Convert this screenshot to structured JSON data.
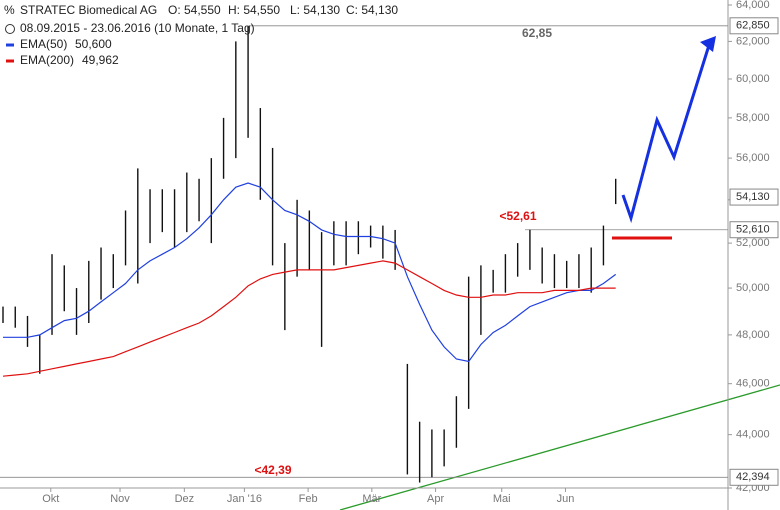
{
  "chart_data": {
    "type": "ohlc",
    "title": "STRATEC Biomedical AG",
    "quote": [
      "O: 54,550",
      "H: 54,550",
      "L: 54,130",
      "C: 54,130"
    ],
    "subtitle": "08.09.2015 - 23.06.2016 (10 Monate, 1 Tag)",
    "bar_color": "#111111",
    "x": [
      0,
      1,
      2,
      3,
      4,
      5,
      6,
      7,
      8,
      9,
      10,
      11,
      12,
      13,
      14,
      15,
      16,
      17,
      18,
      19,
      20,
      21,
      22,
      23,
      24,
      25,
      26,
      27,
      28,
      29,
      30,
      31,
      32,
      33,
      34,
      35,
      36,
      37,
      38,
      39,
      40,
      41,
      42,
      43,
      44,
      45,
      46,
      47,
      48,
      49,
      50
    ],
    "high": [
      49200,
      49200,
      48800,
      48000,
      51500,
      51000,
      50000,
      51200,
      51800,
      51500,
      53500,
      55500,
      54500,
      54500,
      54500,
      55300,
      55000,
      56000,
      58000,
      62000,
      62850,
      58500,
      56500,
      52000,
      54000,
      53500,
      52500,
      53000,
      53000,
      53000,
      52800,
      52800,
      52600,
      46800,
      44500,
      44200,
      44200,
      45500,
      50500,
      51000,
      50800,
      51500,
      52000,
      52610,
      51800,
      51500,
      51200,
      51500,
      51800,
      52800,
      55000
    ],
    "low": [
      48500,
      48300,
      47500,
      46400,
      48000,
      49000,
      48000,
      48500,
      49500,
      50000,
      51000,
      50200,
      52000,
      52500,
      51800,
      52500,
      53000,
      52000,
      55000,
      56000,
      57000,
      54000,
      51000,
      48200,
      50500,
      50800,
      47500,
      51000,
      51000,
      51500,
      51800,
      51300,
      50800,
      42500,
      42200,
      42394,
      42800,
      43500,
      45000,
      48000,
      49800,
      49800,
      50500,
      50800,
      50200,
      50000,
      50000,
      50000,
      49800,
      51000,
      53800
    ],
    "series": [
      {
        "name": "EMA(50)",
        "last": "50,600",
        "color": "#2040e0",
        "values": [
          47900,
          47900,
          47900,
          48000,
          48300,
          48600,
          48700,
          49000,
          49400,
          49800,
          50200,
          50800,
          51200,
          51500,
          51800,
          52200,
          52700,
          53300,
          54000,
          54600,
          54800,
          54600,
          54000,
          53500,
          53300,
          53000,
          52600,
          52400,
          52300,
          52300,
          52300,
          52200,
          52000,
          50500,
          49300,
          48200,
          47500,
          47000,
          46900,
          47600,
          48100,
          48400,
          48800,
          49200,
          49400,
          49600,
          49800,
          49900,
          49900,
          50200,
          50600
        ]
      },
      {
        "name": "EMA(200)",
        "last": "49,962",
        "color": "#e01010",
        "values": [
          46300,
          46350,
          46400,
          46500,
          46600,
          46700,
          46800,
          46900,
          47000,
          47100,
          47300,
          47500,
          47700,
          47900,
          48100,
          48300,
          48500,
          48800,
          49200,
          49600,
          50100,
          50400,
          50600,
          50700,
          50800,
          50800,
          50800,
          50800,
          50900,
          51000,
          51100,
          51200,
          51100,
          50800,
          50500,
          50200,
          49900,
          49700,
          49600,
          49600,
          49700,
          49700,
          49800,
          49800,
          49800,
          49900,
          49900,
          49900,
          50000,
          50000,
          50000
        ]
      }
    ],
    "xlim": [
      0,
      63
    ],
    "xticks": [
      {
        "value": 3.9,
        "label": "Okt"
      },
      {
        "value": 9.55,
        "label": "Nov"
      },
      {
        "value": 14.8,
        "label": "Dez"
      },
      {
        "value": 19.7,
        "label": "Jan '16"
      },
      {
        "value": 24.9,
        "label": "Feb"
      },
      {
        "value": 30.1,
        "label": "Mär"
      },
      {
        "value": 35.3,
        "label": "Apr"
      },
      {
        "value": 40.7,
        "label": "Mai"
      },
      {
        "value": 45.9,
        "label": "Jun"
      }
    ],
    "ylim": [
      42000,
      64000
    ],
    "log_scale": true,
    "yticks": [
      {
        "value": 42000,
        "label": "42,000"
      },
      {
        "value": 44000,
        "label": "44,000"
      },
      {
        "value": 46000,
        "label": "46,000"
      },
      {
        "value": 48000,
        "label": "48,000"
      },
      {
        "value": 50000,
        "label": "50,000"
      },
      {
        "value": 52000,
        "label": "52,000"
      },
      {
        "value": 54000,
        "label": "54,000"
      },
      {
        "value": 56000,
        "label": "56,000"
      },
      {
        "value": 58000,
        "label": "58,000"
      },
      {
        "value": 60000,
        "label": "60,000"
      },
      {
        "value": 62000,
        "label": "62,000"
      },
      {
        "value": 64000,
        "label": "64,000"
      }
    ],
    "levels": [
      {
        "value": 62850,
        "label": "62,850"
      },
      {
        "value": 54130,
        "label": "54,130"
      },
      {
        "value": 52610,
        "label": "52,610"
      },
      {
        "value": 42394,
        "label": "42,394"
      }
    ],
    "annotations": [
      {
        "text": "62,85",
        "color": "#666666"
      },
      {
        "text": "<52,61",
        "color": "#dd1111"
      },
      {
        "text": "<42,39",
        "color": "#dd1111"
      }
    ]
  }
}
